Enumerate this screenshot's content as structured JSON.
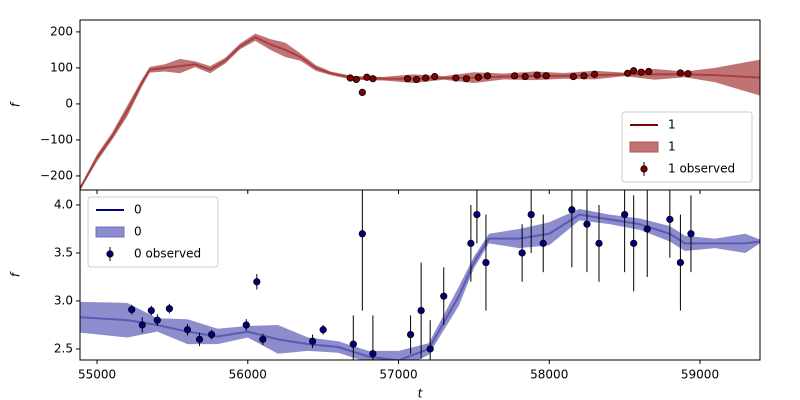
{
  "chart_data": [
    {
      "type": "line",
      "ylabel": "f",
      "xlim": [
        54887,
        59398
      ],
      "ylim": [
        -239,
        233
      ],
      "yticks": [
        {
          "value": 200,
          "label": "200"
        },
        {
          "value": 100,
          "label": "100"
        },
        {
          "value": 0,
          "label": "0"
        },
        {
          "value": -100,
          "label": "−100"
        },
        {
          "value": -200,
          "label": "−200"
        }
      ],
      "legend": "lower right",
      "series": [
        {
          "name": "1",
          "type": "line",
          "color": "#800000",
          "x": [
            54887,
            55000,
            55100,
            55200,
            55300,
            55350,
            55450,
            55550,
            55650,
            55750,
            55850,
            55950,
            56050,
            56150,
            56250,
            56350,
            56450,
            56550,
            56700,
            56900,
            57100,
            57300,
            57500,
            57700,
            57900,
            58100,
            58300,
            58500,
            58700,
            58900,
            59100,
            59398
          ],
          "values": [
            -235,
            -150,
            -90,
            -20,
            60,
            95,
            100,
            105,
            110,
            95,
            120,
            160,
            185,
            165,
            150,
            130,
            100,
            85,
            72,
            70,
            70,
            72,
            73,
            76,
            78,
            78,
            80,
            82,
            82,
            82,
            80,
            73
          ]
        },
        {
          "name": "1",
          "type": "band",
          "color": "#b05050",
          "x": [
            54887,
            55000,
            55100,
            55200,
            55300,
            55350,
            55450,
            55550,
            55650,
            55750,
            55850,
            55950,
            56050,
            56150,
            56250,
            56350,
            56450,
            56550,
            56700,
            56900,
            57100,
            57300,
            57500,
            57700,
            57900,
            58100,
            58300,
            58500,
            58700,
            58900,
            59100,
            59398
          ],
          "lower": [
            -240,
            -160,
            -100,
            -35,
            50,
            87,
            90,
            85,
            102,
            85,
            112,
            152,
            175,
            150,
            130,
            120,
            92,
            80,
            67,
            65,
            58,
            67,
            58,
            68,
            66,
            70,
            68,
            77,
            67,
            74,
            60,
            23
          ],
          "upper": [
            -230,
            -140,
            -80,
            -5,
            70,
            103,
            110,
            125,
            118,
            105,
            128,
            168,
            195,
            180,
            170,
            140,
            108,
            90,
            77,
            75,
            82,
            77,
            88,
            84,
            90,
            86,
            92,
            87,
            97,
            90,
            100,
            123
          ]
        },
        {
          "name": "1 observed",
          "type": "errorbar",
          "color": "#800000",
          "x": [
            56680,
            56720,
            56760,
            56790,
            56830,
            57060,
            57120,
            57180,
            57240,
            57380,
            57450,
            57530,
            57590,
            57770,
            57840,
            57920,
            57980,
            58160,
            58230,
            58300,
            58520,
            58560,
            58610,
            58660,
            58870,
            58920
          ],
          "values": [
            72,
            68,
            32,
            74,
            70,
            70,
            68,
            72,
            76,
            72,
            70,
            74,
            78,
            78,
            76,
            80,
            78,
            76,
            78,
            82,
            85,
            92,
            88,
            90,
            86,
            84
          ],
          "errors": [
            6,
            6,
            8,
            6,
            6,
            5,
            5,
            6,
            5,
            6,
            5,
            6,
            5,
            5,
            6,
            5,
            6,
            6,
            5,
            5,
            6,
            6,
            6,
            5,
            5,
            6
          ]
        }
      ]
    },
    {
      "type": "line",
      "ylabel": "f",
      "xlabel": "t",
      "xlim": [
        54887,
        59398
      ],
      "ylim": [
        2.385,
        4.156
      ],
      "xticks": [
        55000,
        56000,
        57000,
        58000,
        59000
      ],
      "yticks": [
        {
          "value": 4.0,
          "label": "4.0"
        },
        {
          "value": 3.5,
          "label": "3.5"
        },
        {
          "value": 3.0,
          "label": "3.0"
        },
        {
          "value": 2.5,
          "label": "2.5"
        }
      ],
      "legend": "upper left",
      "series": [
        {
          "name": "0",
          "type": "line",
          "color": "#00007f",
          "x": [
            54887,
            55200,
            55400,
            55600,
            55800,
            56000,
            56200,
            56400,
            56600,
            56800,
            57000,
            57200,
            57400,
            57500,
            57600,
            57800,
            58000,
            58200,
            58400,
            58600,
            58800,
            58900,
            59100,
            59300,
            59398
          ],
          "values": [
            2.83,
            2.8,
            2.75,
            2.68,
            2.63,
            2.68,
            2.6,
            2.55,
            2.52,
            2.42,
            2.38,
            2.5,
            3.05,
            3.4,
            3.65,
            3.65,
            3.7,
            3.9,
            3.85,
            3.8,
            3.7,
            3.6,
            3.6,
            3.6,
            3.62
          ]
        },
        {
          "name": "0",
          "type": "band",
          "color": "#7070c0",
          "x": [
            54887,
            55200,
            55400,
            55600,
            55800,
            56000,
            56200,
            56400,
            56600,
            56800,
            57000,
            57200,
            57400,
            57500,
            57600,
            57800,
            58000,
            58200,
            58400,
            58600,
            58800,
            58900,
            59100,
            59300,
            59398
          ],
          "lower": [
            2.67,
            2.62,
            2.68,
            2.55,
            2.55,
            2.62,
            2.45,
            2.48,
            2.46,
            2.36,
            2.28,
            2.44,
            2.95,
            3.34,
            3.6,
            3.55,
            3.58,
            3.84,
            3.8,
            3.74,
            3.62,
            3.52,
            3.55,
            3.5,
            3.6
          ],
          "upper": [
            2.99,
            2.98,
            2.82,
            2.81,
            2.71,
            2.74,
            2.75,
            2.62,
            2.58,
            2.48,
            2.48,
            2.56,
            3.15,
            3.46,
            3.7,
            3.75,
            3.82,
            3.96,
            3.9,
            3.86,
            3.78,
            3.68,
            3.65,
            3.7,
            3.64
          ]
        },
        {
          "name": "0 observed",
          "type": "errorbar",
          "color": "#00007f",
          "x": [
            55230,
            55300,
            55360,
            55400,
            55480,
            55600,
            55680,
            55760,
            55990,
            56060,
            56100,
            56430,
            56500,
            56700,
            56760,
            56830,
            57080,
            57150,
            57210,
            57300,
            57480,
            57520,
            57580,
            57820,
            57880,
            57960,
            58150,
            58250,
            58330,
            58500,
            58560,
            58650,
            58800,
            58870,
            58940
          ],
          "values": [
            2.91,
            2.75,
            2.9,
            2.8,
            2.92,
            2.7,
            2.6,
            2.65,
            2.75,
            3.2,
            2.6,
            2.58,
            2.7,
            2.55,
            3.7,
            2.45,
            2.65,
            2.9,
            2.5,
            3.05,
            3.6,
            3.9,
            3.4,
            3.5,
            3.9,
            3.6,
            3.95,
            3.8,
            3.6,
            3.9,
            3.6,
            3.75,
            3.85,
            3.4,
            3.7
          ],
          "errors": [
            0.05,
            0.08,
            0.05,
            0.06,
            0.05,
            0.06,
            0.07,
            0.05,
            0.06,
            0.08,
            0.06,
            0.07,
            0.05,
            0.3,
            0.8,
            0.4,
            0.2,
            0.5,
            0.3,
            0.3,
            0.4,
            0.3,
            0.5,
            0.3,
            0.4,
            0.3,
            0.6,
            0.5,
            0.4,
            0.6,
            0.5,
            0.5,
            0.4,
            0.5,
            0.4
          ]
        }
      ]
    }
  ]
}
